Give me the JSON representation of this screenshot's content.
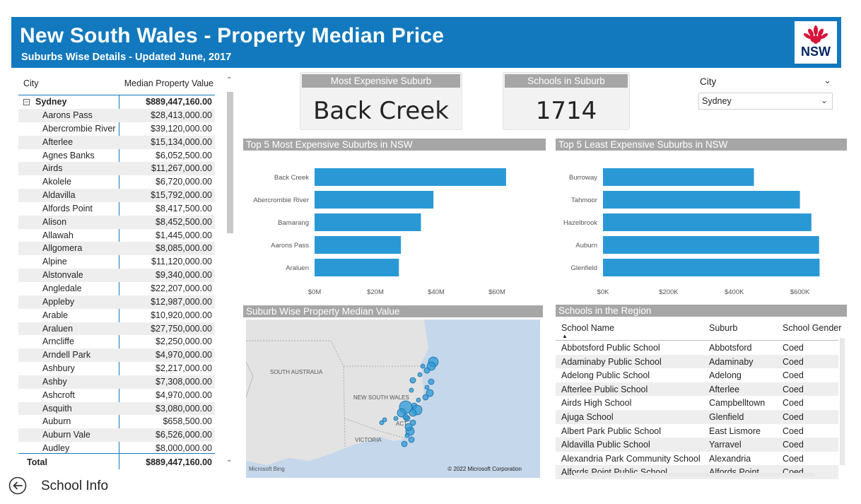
{
  "header": {
    "title": "New South Wales - Property Median Price",
    "subtitle": "Suburbs Wise Details - Updated June, 2017",
    "logo_text": "NSW"
  },
  "city_table": {
    "col_city": "City",
    "col_value": "Median Property Value",
    "group": {
      "name": "Sydney",
      "value": "$889,447,160.00",
      "toggle": "⊟"
    },
    "rows": [
      {
        "name": "Aarons Pass",
        "value": "$28,413,000.00"
      },
      {
        "name": "Abercrombie River",
        "value": "$39,120,000.00"
      },
      {
        "name": "Afterlee",
        "value": "$15,134,000.00"
      },
      {
        "name": "Agnes Banks",
        "value": "$6,052,500.00"
      },
      {
        "name": "Airds",
        "value": "$11,267,000.00"
      },
      {
        "name": "Akolele",
        "value": "$6,720,000.00"
      },
      {
        "name": "Aldavilla",
        "value": "$15,792,000.00"
      },
      {
        "name": "Alfords Point",
        "value": "$8,417,500.00"
      },
      {
        "name": "Alison",
        "value": "$8,452,500.00"
      },
      {
        "name": "Allawah",
        "value": "$1,445,000.00"
      },
      {
        "name": "Allgomera",
        "value": "$8,085,000.00"
      },
      {
        "name": "Alpine",
        "value": "$11,120,000.00"
      },
      {
        "name": "Alstonvale",
        "value": "$9,340,000.00"
      },
      {
        "name": "Angledale",
        "value": "$22,207,000.00"
      },
      {
        "name": "Appleby",
        "value": "$12,987,000.00"
      },
      {
        "name": "Arable",
        "value": "$10,920,000.00"
      },
      {
        "name": "Araluen",
        "value": "$27,750,000.00"
      },
      {
        "name": "Arncliffe",
        "value": "$2,250,000.00"
      },
      {
        "name": "Arndell Park",
        "value": "$4,970,000.00"
      },
      {
        "name": "Ashbury",
        "value": "$2,217,000.00"
      },
      {
        "name": "Ashby",
        "value": "$7,308,000.00"
      },
      {
        "name": "Ashcroft",
        "value": "$4,970,000.00"
      },
      {
        "name": "Asquith",
        "value": "$3,080,000.00"
      },
      {
        "name": "Auburn",
        "value": "$658,500.00"
      },
      {
        "name": "Auburn Vale",
        "value": "$6,526,000.00"
      },
      {
        "name": "Audley",
        "value": "$8,000,000.00"
      }
    ],
    "total": {
      "name": "Total",
      "value": "$889,447,160.00"
    },
    "scroll_up": "^",
    "scroll_down": "v"
  },
  "kpi": {
    "most_expensive": {
      "title": "Most Expensive Suburb",
      "value": "Back Creek"
    },
    "schools": {
      "title": "Schools in Suburb",
      "value": "1714"
    }
  },
  "slicer": {
    "label": "City",
    "value": "Sydney",
    "chevron": "⌵"
  },
  "top5_title": "Top 5 Most Expensive Suburbs in NSW",
  "least5_title": "Top 5 Least Expensive Suburbs in NSW",
  "map_title": "Suburb Wise Property Median Value",
  "schools_title": "Schools in the Region",
  "chart_data": [
    {
      "type": "bar",
      "orientation": "horizontal",
      "title": "Top 5 Most Expensive Suburbs in NSW",
      "categories": [
        "Back Creek",
        "Abercrombie River",
        "Bamarang",
        "Aarons Pass",
        "Araluen"
      ],
      "values": [
        63000000,
        39120000,
        35000000,
        28413000,
        27750000
      ],
      "xlim": [
        0,
        70000000
      ],
      "ticks": [
        0,
        20000000,
        40000000,
        60000000
      ],
      "tick_labels": [
        "$0M",
        "$20M",
        "$40M",
        "$60M"
      ],
      "color": "#2b98d6",
      "grid": false
    },
    {
      "type": "bar",
      "orientation": "horizontal",
      "title": "Top 5 Least Expensive Suburbs in NSW",
      "categories": [
        "Burroway",
        "Tahmoor",
        "Hazelbrook",
        "Auburn",
        "Glenfield"
      ],
      "values": [
        460000,
        600000,
        635000,
        658500,
        660000
      ],
      "xlim": [
        0,
        700000
      ],
      "ticks": [
        0,
        200000,
        400000,
        600000
      ],
      "tick_labels": [
        "$0K",
        "$200K",
        "$400K",
        "$600K"
      ],
      "color": "#2b98d6",
      "grid": false
    }
  ],
  "map": {
    "labels": {
      "sa": "SOUTH AUSTRALIA",
      "nsw": "NEW SOUTH WALES",
      "vic": "VICTORIA",
      "act": "ACT"
    },
    "bing": "Microsoft Bing",
    "copyright": "© 2022 Microsoft Corporation",
    "colors": {
      "water": "#c5d7ea",
      "land": "#e3e3e3",
      "bubble": "#2b98d6"
    }
  },
  "schools_table": {
    "cols": [
      "School Name",
      "Suburb",
      "School Gender"
    ],
    "sort_indicator": "▲",
    "rows": [
      [
        "Abbotsford Public School",
        "Abbotsford",
        "Coed"
      ],
      [
        "Adaminaby Public School",
        "Adaminaby",
        "Coed"
      ],
      [
        "Adelong Public School",
        "Adelong",
        "Coed"
      ],
      [
        "Afterlee Public School",
        "Afterlee",
        "Coed"
      ],
      [
        "Airds High School",
        "Campbelltown",
        "Coed"
      ],
      [
        "Ajuga School",
        "Glenfield",
        "Coed"
      ],
      [
        "Albert Park Public School",
        "East Lismore",
        "Coed"
      ],
      [
        "Aldavilla Public School",
        "Yarravel",
        "Coed"
      ],
      [
        "Alexandria Park Community School",
        "Alexandria",
        "Coed"
      ],
      [
        "Alfords Point Public School",
        "Alfords Point",
        "Coed"
      ]
    ],
    "scroll_left": "<",
    "scroll_right": ">"
  },
  "footer": {
    "label": "School Info"
  }
}
